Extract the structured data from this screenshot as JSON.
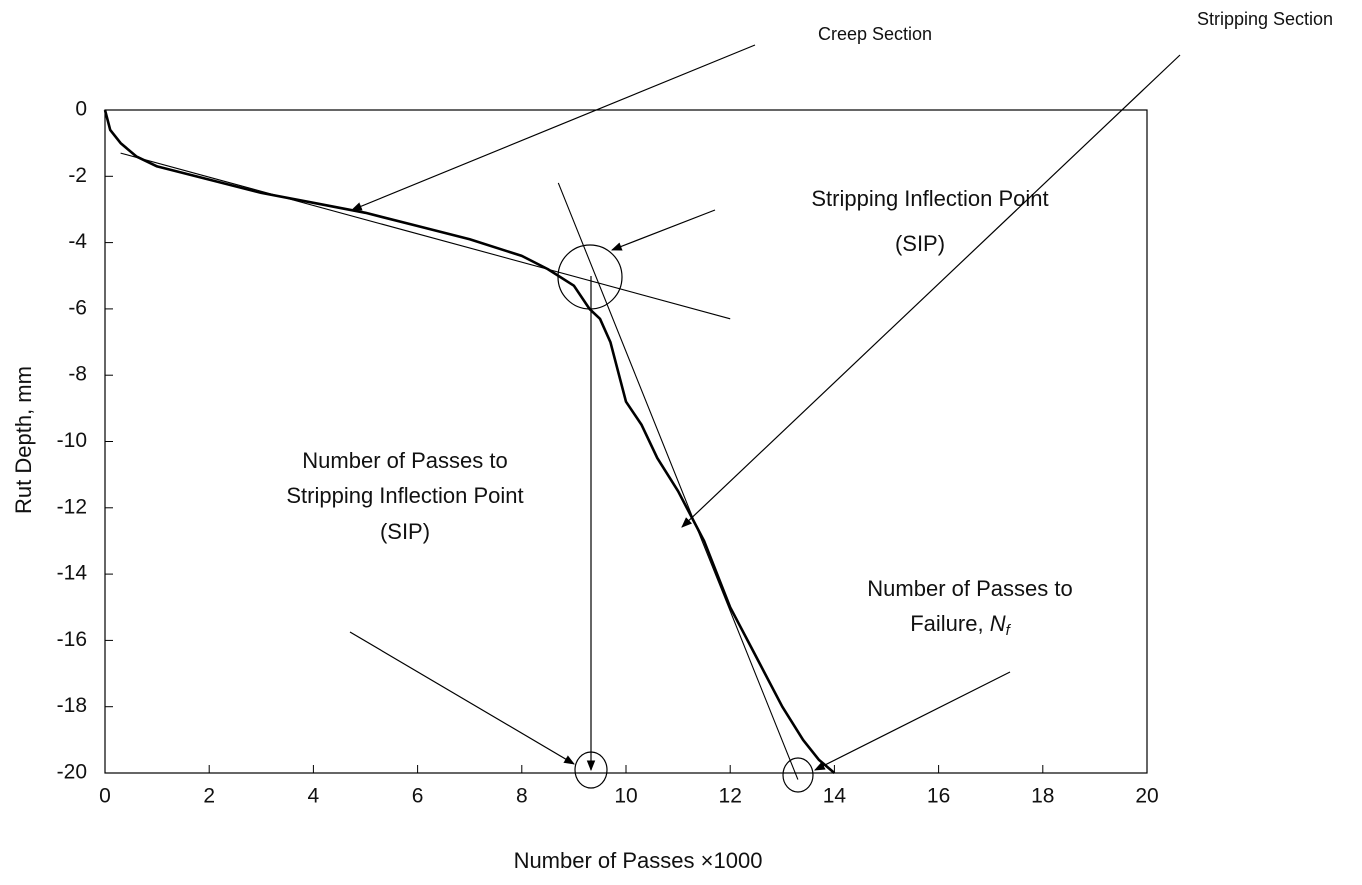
{
  "chart_data": {
    "type": "line",
    "xlabel": "Number of Passes ×1000",
    "ylabel": "Rut Depth, mm",
    "xlim": [
      0,
      20
    ],
    "ylim": [
      -20,
      0
    ],
    "xticks": [
      0,
      2,
      4,
      6,
      8,
      10,
      12,
      14,
      16,
      18,
      20
    ],
    "yticks": [
      0,
      -2,
      -4,
      -6,
      -8,
      -10,
      -12,
      -14,
      -16,
      -18,
      -20
    ],
    "series": [
      {
        "color": "#000000",
        "x": [
          0,
          0.1,
          0.3,
          0.6,
          1,
          2,
          3,
          4,
          5,
          6,
          7,
          8,
          8.5,
          9,
          9.3,
          9.5,
          9.7,
          10,
          10.3,
          10.6,
          11,
          11.5,
          12,
          12.5,
          13,
          13.4,
          13.7,
          14
        ],
        "values": [
          0,
          -0.6,
          -1.0,
          -1.4,
          -1.7,
          -2.1,
          -2.5,
          -2.8,
          -3.1,
          -3.5,
          -3.9,
          -4.4,
          -4.8,
          -5.3,
          -6.0,
          -6.3,
          -7.0,
          -8.8,
          -9.5,
          -10.5,
          -11.5,
          -13.0,
          -15.0,
          -16.5,
          -18.0,
          -19.0,
          -19.6,
          -20.0
        ]
      },
      {
        "color": "#000000",
        "x": [
          0.3,
          12
        ],
        "values": [
          -1.3,
          -6.3
        ]
      },
      {
        "color": "#000000",
        "x": [
          8.7,
          13.3
        ],
        "values": [
          -2.2,
          -20.2
        ]
      }
    ],
    "annotations": [
      {
        "text": "Creep Section"
      },
      {
        "text": "Stripping Section"
      },
      {
        "lines": [
          "Stripping Inflection Point",
          "(SIP)"
        ]
      },
      {
        "lines": [
          "Number of Passes to",
          "Stripping Inflection Point",
          "(SIP)"
        ]
      },
      {
        "lines": [
          "Number of Passes to"
        ],
        "text": "Failure, ",
        "italic": "N",
        "subscript": "f"
      }
    ]
  }
}
